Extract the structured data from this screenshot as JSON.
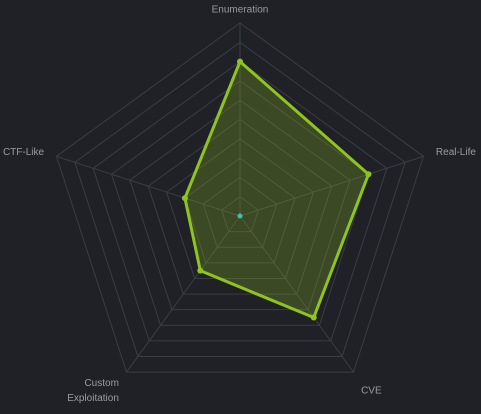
{
  "chart_data": {
    "type": "radar",
    "categories": [
      "Enumeration",
      "Real-Life",
      "CVE",
      "Custom Exploitation",
      "CTF-Like"
    ],
    "values": [
      8,
      7,
      6.5,
      3.5,
      3
    ],
    "color": "#8fc31f",
    "ylim": [
      0,
      10
    ],
    "yticks": [
      1,
      2,
      3,
      4,
      5,
      6,
      7,
      8,
      9,
      10
    ],
    "grid": true
  }
}
